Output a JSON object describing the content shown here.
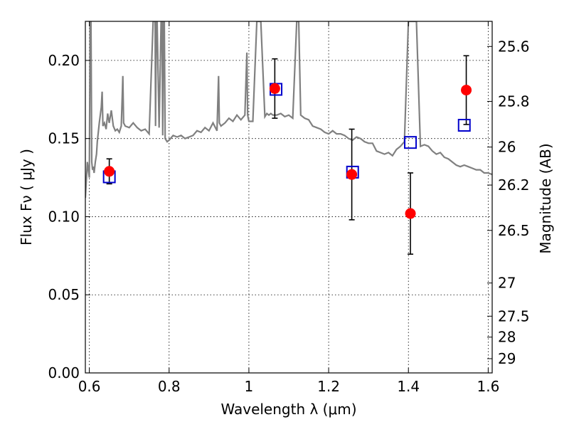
{
  "chart_data": {
    "type": "scatter",
    "xlabel": "Wavelength  λ (μm)",
    "ylabel": "Flux  Fν  ( μJy )",
    "y2label": "Magnitude (AB)",
    "xlim": [
      0.59,
      1.61
    ],
    "ylim": [
      0.0,
      0.225
    ],
    "x_ticks": [
      0.6,
      0.8,
      1.0,
      1.2,
      1.4,
      1.6
    ],
    "x_tick_labels": [
      "0.6",
      "0.8",
      "1",
      "1.2",
      "1.4",
      "1.6"
    ],
    "y_ticks": [
      0.0,
      0.05,
      0.1,
      0.15,
      0.2
    ],
    "y_tick_labels": [
      "0.00",
      "0.05",
      "0.10",
      "0.15",
      "0.20"
    ],
    "y2_ticks": [
      25.6,
      25.8,
      26,
      26.2,
      26.5,
      27,
      27.5,
      28,
      29
    ],
    "y2_tick_labels": [
      "25.6",
      "25.8",
      "26",
      "26.2",
      "26.5",
      "27",
      "27.5",
      "28",
      "29"
    ],
    "grid": true,
    "legend": "none",
    "series": [
      {
        "kind": "line",
        "color": "#808080",
        "x": [
          0.59,
          0.595,
          0.6,
          0.602,
          0.604,
          0.606,
          0.608,
          0.61,
          0.612,
          0.615,
          0.618,
          0.62,
          0.625,
          0.63,
          0.632,
          0.634,
          0.638,
          0.642,
          0.646,
          0.65,
          0.655,
          0.66,
          0.665,
          0.67,
          0.675,
          0.68,
          0.683,
          0.684,
          0.686,
          0.69,
          0.7,
          0.71,
          0.72,
          0.73,
          0.74,
          0.75,
          0.76,
          0.765,
          0.766,
          0.768,
          0.77,
          0.775,
          0.78,
          0.782,
          0.784,
          0.786,
          0.788,
          0.79,
          0.795,
          0.8,
          0.81,
          0.82,
          0.83,
          0.84,
          0.85,
          0.86,
          0.87,
          0.88,
          0.89,
          0.9,
          0.91,
          0.92,
          0.924,
          0.926,
          0.93,
          0.94,
          0.95,
          0.96,
          0.97,
          0.98,
          0.99,
          0.995,
          0.997,
          1.0,
          1.01,
          1.02,
          1.03,
          1.04,
          1.045,
          1.05,
          1.055,
          1.06,
          1.07,
          1.08,
          1.09,
          1.1,
          1.11,
          1.12,
          1.123,
          1.125,
          1.13,
          1.14,
          1.15,
          1.16,
          1.17,
          1.18,
          1.19,
          1.2,
          1.21,
          1.22,
          1.23,
          1.24,
          1.25,
          1.26,
          1.27,
          1.28,
          1.29,
          1.3,
          1.31,
          1.32,
          1.33,
          1.34,
          1.35,
          1.36,
          1.37,
          1.38,
          1.39,
          1.4,
          1.41,
          1.42,
          1.43,
          1.44,
          1.45,
          1.46,
          1.47,
          1.48,
          1.49,
          1.5,
          1.51,
          1.52,
          1.53,
          1.54,
          1.55,
          1.56,
          1.57,
          1.58,
          1.59,
          1.6,
          1.61
        ],
        "y": [
          0.112,
          0.135,
          0.125,
          0.225,
          0.225,
          0.135,
          0.13,
          0.132,
          0.128,
          0.135,
          0.14,
          0.148,
          0.16,
          0.17,
          0.18,
          0.158,
          0.16,
          0.156,
          0.166,
          0.16,
          0.168,
          0.158,
          0.155,
          0.156,
          0.154,
          0.158,
          0.182,
          0.19,
          0.16,
          0.158,
          0.157,
          0.16,
          0.157,
          0.155,
          0.156,
          0.153,
          0.225,
          0.225,
          0.158,
          0.225,
          0.225,
          0.157,
          0.225,
          0.225,
          0.152,
          0.225,
          0.225,
          0.15,
          0.148,
          0.149,
          0.152,
          0.151,
          0.152,
          0.15,
          0.151,
          0.152,
          0.155,
          0.154,
          0.157,
          0.155,
          0.16,
          0.155,
          0.19,
          0.16,
          0.158,
          0.16,
          0.163,
          0.161,
          0.165,
          0.162,
          0.165,
          0.205,
          0.165,
          0.161,
          0.161,
          0.225,
          0.225,
          0.164,
          0.166,
          0.165,
          0.166,
          0.165,
          0.165,
          0.166,
          0.164,
          0.165,
          0.163,
          0.225,
          0.225,
          0.225,
          0.165,
          0.163,
          0.162,
          0.158,
          0.157,
          0.156,
          0.154,
          0.153,
          0.155,
          0.153,
          0.153,
          0.152,
          0.15,
          0.149,
          0.151,
          0.15,
          0.148,
          0.147,
          0.147,
          0.142,
          0.141,
          0.14,
          0.141,
          0.139,
          0.143,
          0.145,
          0.148,
          0.225,
          0.225,
          0.225,
          0.145,
          0.146,
          0.145,
          0.142,
          0.14,
          0.141,
          0.138,
          0.137,
          0.135,
          0.133,
          0.132,
          0.133,
          0.132,
          0.131,
          0.13,
          0.13,
          0.128,
          0.128,
          0.127
        ]
      },
      {
        "kind": "errorbar",
        "color": "#ff0000",
        "ecolor": "#000000",
        "x": [
          0.65,
          1.065,
          1.258,
          1.405,
          1.545
        ],
        "y": [
          0.129,
          0.182,
          0.127,
          0.102,
          0.181
        ],
        "err": [
          0.008,
          0.019,
          0.029,
          0.026,
          0.022
        ]
      },
      {
        "kind": "square-markers",
        "color": "#0000cc",
        "x": [
          0.65,
          1.068,
          1.26,
          1.405,
          1.54
        ],
        "y": [
          0.1255,
          0.1815,
          0.1285,
          0.1475,
          0.1585
        ]
      }
    ]
  }
}
